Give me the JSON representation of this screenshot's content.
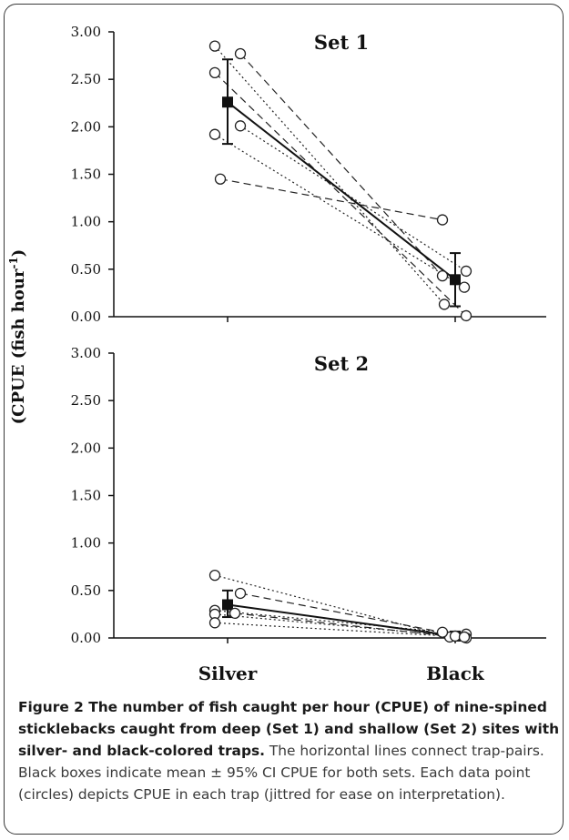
{
  "figure": {
    "caption_bold": "Figure 2 The number of fish caught per hour (CPUE) of nine-spined sticklebacks caught from deep (Set 1) and shallow (Set 2) sites with silver- and black-colored traps.",
    "caption_text": " The horizontal lines connect trap-pairs. Black boxes indicate mean ± 95% CI CPUE for both sets. Each data point (circles) depicts CPUE in each trap (jittred for ease on interpretation)."
  },
  "chart_data": [
    {
      "type": "scatter",
      "title": "Set 1",
      "ylabel": "(CPUE (fish hour-1)",
      "categories": [
        "Silver",
        "Black"
      ],
      "ylim": [
        0,
        3
      ],
      "yticks": [
        "0.00",
        "0.50",
        "1.00",
        "1.50",
        "2.00",
        "2.50",
        "3.00"
      ],
      "show_category_labels": false,
      "trap_pairs": [
        {
          "silver": 2.85,
          "black": 0.13,
          "line": "dotted"
        },
        {
          "silver": 2.77,
          "black": 0.43,
          "line": "dashed"
        },
        {
          "silver": 2.57,
          "black": 0.01,
          "line": "dashed"
        },
        {
          "silver": 2.01,
          "black": 0.48,
          "line": "dotted"
        },
        {
          "silver": 1.92,
          "black": 0.31,
          "line": "dotted"
        },
        {
          "silver": 1.45,
          "black": 1.02,
          "line": "dashed"
        }
      ],
      "means": [
        {
          "category": "Silver",
          "mean": 2.26,
          "ci_low": 1.82,
          "ci_high": 2.71
        },
        {
          "category": "Black",
          "mean": 0.39,
          "ci_low": 0.11,
          "ci_high": 0.67
        }
      ]
    },
    {
      "type": "scatter",
      "title": "Set 2",
      "ylabel": "",
      "categories": [
        "Silver",
        "Black"
      ],
      "ylim": [
        0,
        3
      ],
      "yticks": [
        "0.00",
        "0.50",
        "1.00",
        "1.50",
        "2.00",
        "2.50",
        "3.00"
      ],
      "show_category_labels": true,
      "trap_pairs": [
        {
          "silver": 0.66,
          "black": 0.01,
          "line": "dotted"
        },
        {
          "silver": 0.47,
          "black": 0.06,
          "line": "dashed"
        },
        {
          "silver": 0.29,
          "black": 0.04,
          "line": "dotted"
        },
        {
          "silver": 0.26,
          "black": 0.0,
          "line": "dashed"
        },
        {
          "silver": 0.25,
          "black": 0.02,
          "line": "dotted"
        },
        {
          "silver": 0.16,
          "black": 0.01,
          "line": "dotted"
        }
      ],
      "means": [
        {
          "category": "Silver",
          "mean": 0.35,
          "ci_low": 0.22,
          "ci_high": 0.5
        },
        {
          "category": "Black",
          "mean": 0.02,
          "ci_low": 0.0,
          "ci_high": 0.05
        }
      ]
    }
  ]
}
